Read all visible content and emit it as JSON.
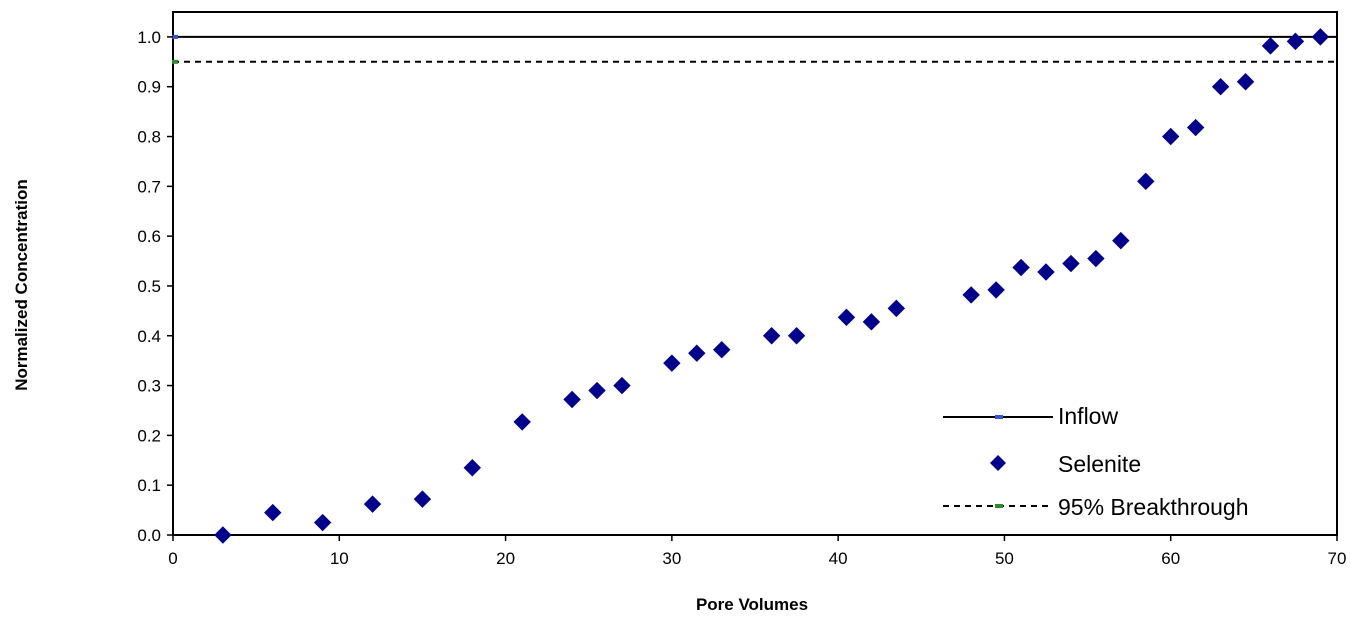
{
  "chart_data": {
    "type": "scatter",
    "xlabel": "Pore Volumes",
    "ylabel": "Normalized Concentration",
    "xlim": [
      0,
      70
    ],
    "ylim": [
      0,
      1.05
    ],
    "xticks": [
      "0",
      "10",
      "20",
      "30",
      "40",
      "50",
      "60",
      "70"
    ],
    "yticks": [
      "0.0",
      "0.1",
      "0.2",
      "0.3",
      "0.4",
      "0.5",
      "0.6",
      "0.7",
      "0.8",
      "0.9",
      "1.0"
    ],
    "grid": false,
    "legend_position": "bottom-right",
    "series": [
      {
        "name": "Inflow",
        "style": "solid-line",
        "color": "#000000",
        "marker_color": "#3355cc",
        "x": [
          0,
          70
        ],
        "y": [
          1.0,
          1.0
        ]
      },
      {
        "name": "Selenite",
        "style": "diamond-markers",
        "color": "#00008b",
        "x": [
          3,
          6,
          9,
          12,
          15,
          18,
          21,
          24,
          25.5,
          27,
          30,
          31.5,
          33,
          36,
          37.5,
          40.5,
          42,
          43.5,
          48,
          49.5,
          51,
          52.5,
          54,
          55.5,
          57,
          58.5,
          60,
          61.5,
          63,
          64.5,
          66,
          67.5,
          69
        ],
        "y": [
          0.0,
          0.045,
          0.025,
          0.062,
          0.072,
          0.135,
          0.227,
          0.272,
          0.29,
          0.3,
          0.345,
          0.365,
          0.372,
          0.4,
          0.4,
          0.437,
          0.428,
          0.455,
          0.482,
          0.492,
          0.537,
          0.528,
          0.545,
          0.555,
          0.591,
          0.71,
          0.8,
          0.818,
          0.9,
          0.91,
          0.982,
          0.991,
          1.0
        ]
      },
      {
        "name": "95% Breakthrough",
        "style": "dashed-line",
        "color": "#000000",
        "marker_color": "#2e8b2e",
        "x": [
          0,
          70
        ],
        "y": [
          0.95,
          0.95
        ]
      }
    ]
  }
}
